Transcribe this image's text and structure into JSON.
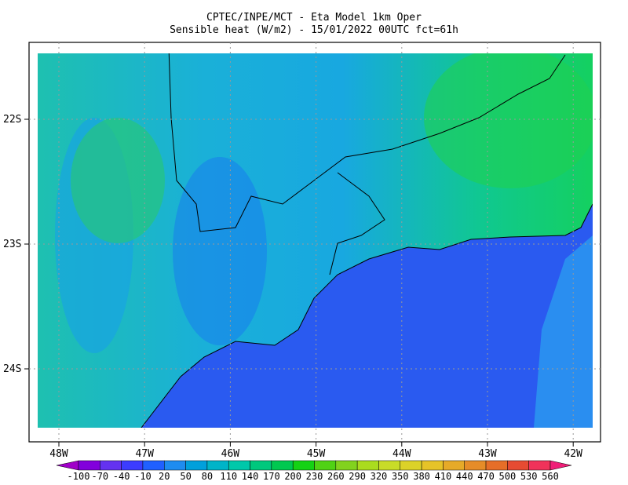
{
  "header": {
    "title_lines": [
      "CPTEC/INPE/MCT -  Eta Model 1km Oper",
      "Sensible heat (W/m2) - 15/01/2022 00UTC fct=61h"
    ]
  },
  "map": {
    "lat_labels": [
      "22S",
      "23S",
      "24S"
    ],
    "lon_labels": [
      "48W",
      "47W",
      "46W",
      "45W",
      "44W",
      "43W",
      "42W"
    ]
  },
  "colorbar": {
    "levels": [
      -100,
      -70,
      -40,
      -10,
      20,
      50,
      80,
      110,
      140,
      170,
      200,
      230,
      260,
      290,
      320,
      350,
      380,
      410,
      440,
      470,
      500,
      530,
      560
    ],
    "colors": [
      "#a000c8",
      "#8200dc",
      "#6432f0",
      "#3c3cff",
      "#2060ff",
      "#1e8cf0",
      "#00a0dc",
      "#00b4c8",
      "#00c8aa",
      "#00c87d",
      "#00c850",
      "#14d214",
      "#50d214",
      "#82d21e",
      "#aadc1e",
      "#c8dc28",
      "#dcd228",
      "#e6c328",
      "#e6aa28",
      "#e68c28",
      "#e66e28",
      "#e64b32",
      "#f0325a",
      "#f01e78"
    ]
  }
}
